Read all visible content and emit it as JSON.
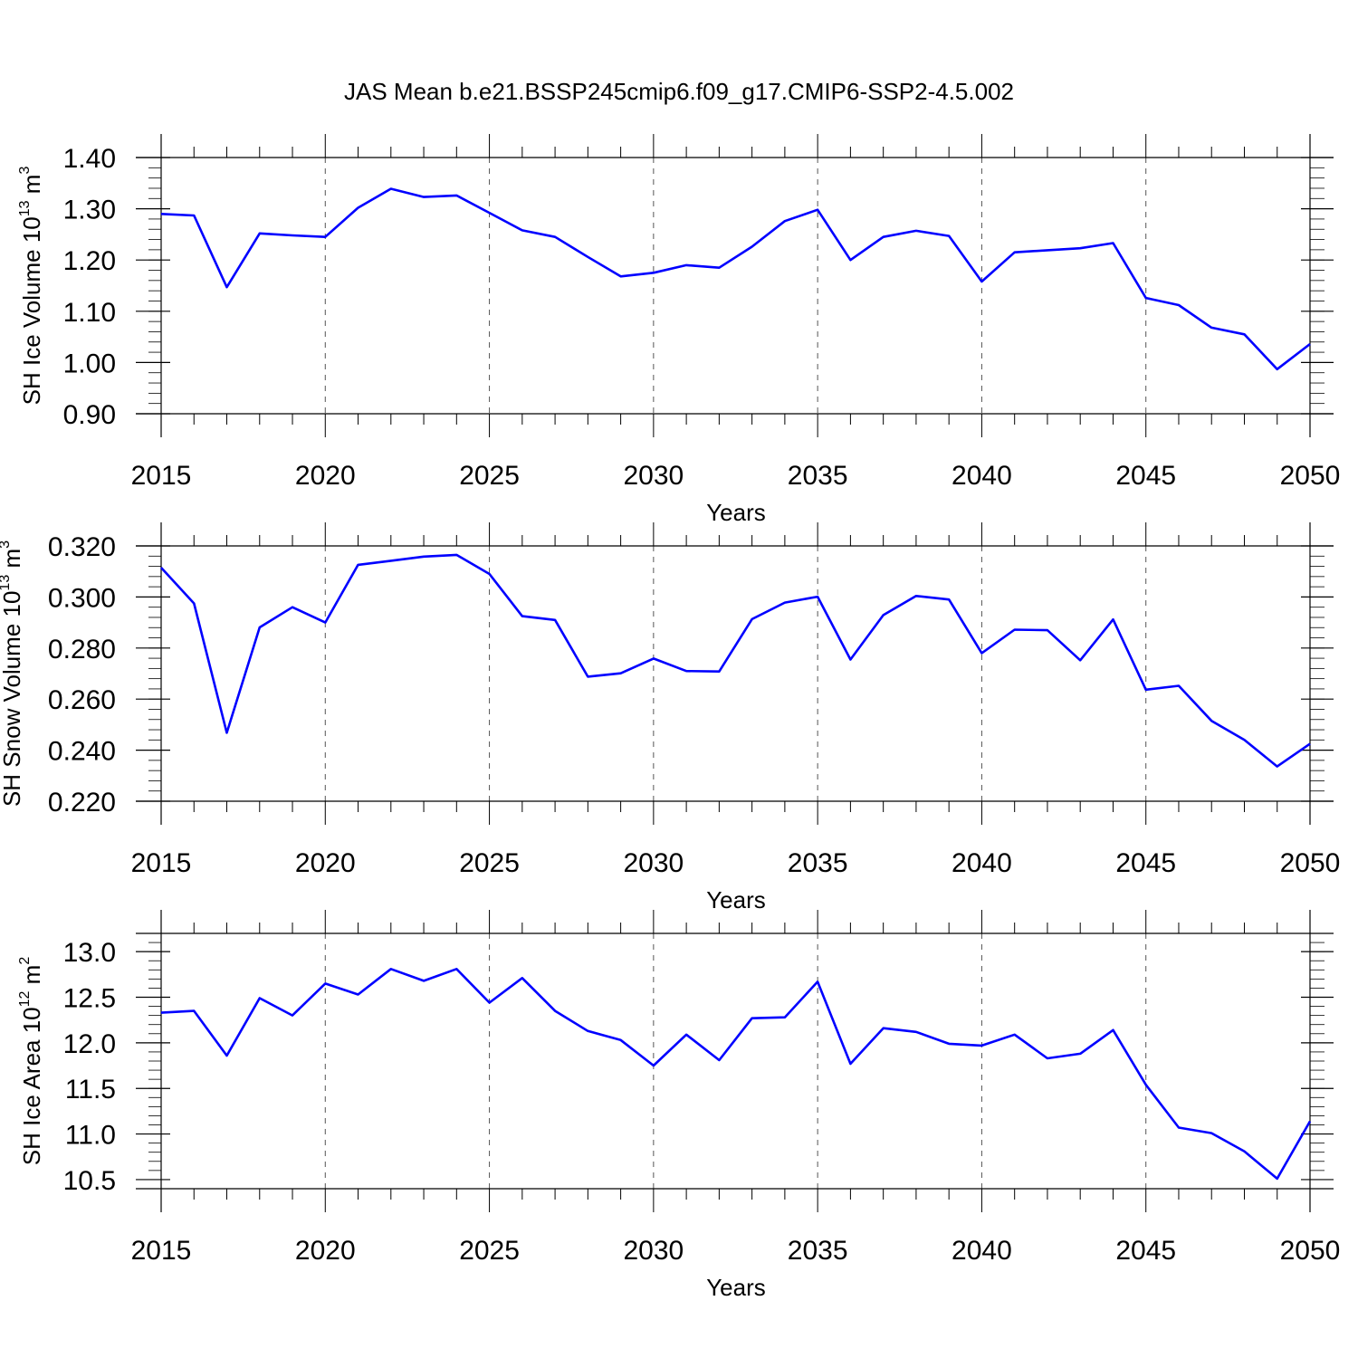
{
  "title": "JAS Mean b.e21.BSSP245cmip6.f09_g17.CMIP6-SSP2-4.5.002",
  "colors": {
    "line": "#0000ff",
    "axis": "#000000",
    "grid": "#555555"
  },
  "chart_data": [
    {
      "type": "line",
      "xlabel": "Years",
      "ylabel": {
        "text": "SH Ice Volume 10",
        "exponent": "13",
        "unit": " m",
        "unit_exponent": "3"
      },
      "xlim": [
        2015,
        2050
      ],
      "ylim": [
        0.9,
        1.4
      ],
      "x_ticks": [
        2015,
        2020,
        2025,
        2030,
        2035,
        2040,
        2045,
        2050
      ],
      "x_tick_labels": [
        "2015",
        "2020",
        "2025",
        "2030",
        "2035",
        "2040",
        "2045",
        "2050"
      ],
      "y_ticks": [
        0.9,
        1.0,
        1.1,
        1.2,
        1.3,
        1.4
      ],
      "y_tick_labels": [
        "0.90",
        "1.00",
        "1.10",
        "1.20",
        "1.30",
        "1.40"
      ],
      "y_minor_step": 0.02,
      "grid": "vertical dashed at major x ticks",
      "x": [
        2015,
        2016,
        2017,
        2018,
        2019,
        2020,
        2021,
        2022,
        2023,
        2024,
        2025,
        2026,
        2027,
        2028,
        2029,
        2030,
        2031,
        2032,
        2033,
        2034,
        2035,
        2036,
        2037,
        2038,
        2039,
        2040,
        2041,
        2042,
        2043,
        2044,
        2045,
        2046,
        2047,
        2048,
        2049,
        2050
      ],
      "y": [
        1.29,
        1.287,
        1.147,
        1.252,
        1.248,
        1.245,
        1.302,
        1.339,
        1.323,
        1.326,
        1.292,
        1.258,
        1.245,
        1.206,
        1.168,
        1.175,
        1.19,
        1.185,
        1.226,
        1.276,
        1.298,
        1.2,
        1.245,
        1.257,
        1.247,
        1.158,
        1.215,
        1.219,
        1.223,
        1.233,
        1.126,
        1.112,
        1.068,
        1.055,
        0.987,
        1.036
      ]
    },
    {
      "type": "line",
      "xlabel": "Years",
      "ylabel": {
        "text": "SH Snow Volume 10",
        "exponent": "13",
        "unit": " m",
        "unit_exponent": "3"
      },
      "xlim": [
        2015,
        2050
      ],
      "ylim": [
        0.22,
        0.32
      ],
      "x_ticks": [
        2015,
        2020,
        2025,
        2030,
        2035,
        2040,
        2045,
        2050
      ],
      "x_tick_labels": [
        "2015",
        "2020",
        "2025",
        "2030",
        "2035",
        "2040",
        "2045",
        "2050"
      ],
      "y_ticks": [
        0.22,
        0.24,
        0.26,
        0.28,
        0.3,
        0.32
      ],
      "y_tick_labels": [
        "0.220",
        "0.240",
        "0.260",
        "0.280",
        "0.300",
        "0.320"
      ],
      "y_minor_step": 0.004,
      "grid": "vertical dashed at major x ticks",
      "x": [
        2015,
        2016,
        2017,
        2018,
        2019,
        2020,
        2021,
        2022,
        2023,
        2024,
        2025,
        2026,
        2027,
        2028,
        2029,
        2030,
        2031,
        2032,
        2033,
        2034,
        2035,
        2036,
        2037,
        2038,
        2039,
        2040,
        2041,
        2042,
        2043,
        2044,
        2045,
        2046,
        2047,
        2048,
        2049,
        2050
      ],
      "y": [
        0.3115,
        0.2975,
        0.2468,
        0.2881,
        0.296,
        0.29,
        0.3126,
        0.3142,
        0.3158,
        0.3165,
        0.309,
        0.2925,
        0.291,
        0.2688,
        0.2701,
        0.2759,
        0.271,
        0.2708,
        0.2913,
        0.2978,
        0.3001,
        0.2755,
        0.2929,
        0.3004,
        0.299,
        0.278,
        0.2872,
        0.287,
        0.2752,
        0.2912,
        0.2637,
        0.2652,
        0.2515,
        0.244,
        0.2336,
        0.2425
      ]
    },
    {
      "type": "line",
      "xlabel": "Years",
      "ylabel": {
        "text": "SH Ice Area 10",
        "exponent": "12",
        "unit": " m",
        "unit_exponent": "2"
      },
      "xlim": [
        2015,
        2050
      ],
      "ylim": [
        10.4,
        13.2
      ],
      "x_ticks": [
        2015,
        2020,
        2025,
        2030,
        2035,
        2040,
        2045,
        2050
      ],
      "x_tick_labels": [
        "2015",
        "2020",
        "2025",
        "2030",
        "2035",
        "2040",
        "2045",
        "2050"
      ],
      "y_ticks": [
        10.5,
        11.0,
        11.5,
        12.0,
        12.5,
        13.0
      ],
      "y_tick_labels": [
        "10.5",
        "11.0",
        "11.5",
        "12.0",
        "12.5",
        "13.0"
      ],
      "y_minor_step": 0.1,
      "grid": "vertical dashed at major x ticks",
      "x": [
        2015,
        2016,
        2017,
        2018,
        2019,
        2020,
        2021,
        2022,
        2023,
        2024,
        2025,
        2026,
        2027,
        2028,
        2029,
        2030,
        2031,
        2032,
        2033,
        2034,
        2035,
        2036,
        2037,
        2038,
        2039,
        2040,
        2041,
        2042,
        2043,
        2044,
        2045,
        2046,
        2047,
        2048,
        2049,
        2050
      ],
      "y": [
        12.33,
        12.35,
        11.86,
        12.49,
        12.3,
        12.65,
        12.53,
        12.81,
        12.68,
        12.81,
        12.44,
        12.71,
        12.35,
        12.13,
        12.03,
        11.75,
        12.09,
        11.81,
        12.27,
        12.28,
        12.67,
        11.77,
        12.16,
        12.12,
        11.99,
        11.97,
        12.09,
        11.83,
        11.88,
        12.14,
        11.54,
        11.07,
        11.01,
        10.81,
        10.51,
        11.14
      ]
    }
  ]
}
